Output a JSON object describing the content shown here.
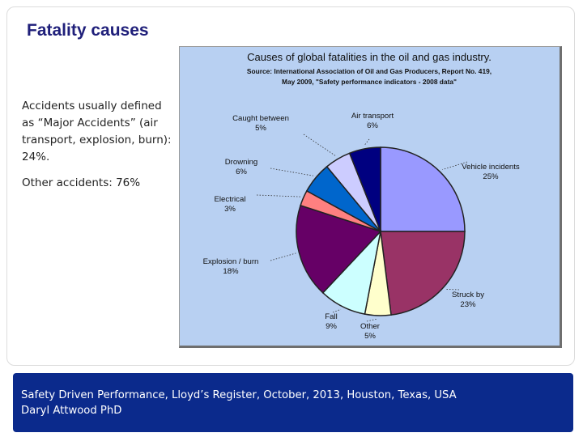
{
  "slide": {
    "title": "Fatality causes",
    "body": [
      "Accidents usually defined as “Major Accidents” (air transport, explosion, burn): 24%.",
      "Other accidents: 76%"
    ]
  },
  "footer": {
    "line1": "Safety Driven Performance, Lloyd’s Register, October, 2013, Houston, Texas, USA",
    "line2": "Daryl Attwood PhD"
  },
  "chart_data": {
    "type": "pie",
    "title": "Causes of global fatalities in the oil and gas industry.",
    "subtitle": [
      "Source: International Association of Oil and Gas Producers, Report No. 419,",
      "May 2009, \"Safety performance indicators - 2008 data\""
    ],
    "background": "#b8d0f2",
    "slices": [
      {
        "name": "Vehicle incidents",
        "value": 25,
        "label": "25%",
        "color": "#9999ff"
      },
      {
        "name": "Struck by",
        "value": 23,
        "label": "23%",
        "color": "#993366"
      },
      {
        "name": "Other",
        "value": 5,
        "label": "5%",
        "color": "#ffffcc"
      },
      {
        "name": "Fall",
        "value": 9,
        "label": "9%",
        "color": "#ccffff"
      },
      {
        "name": "Explosion / burn",
        "value": 18,
        "label": "18%",
        "color": "#660066"
      },
      {
        "name": "Electrical",
        "value": 3,
        "label": "3%",
        "color": "#ff8080"
      },
      {
        "name": "Drowning",
        "value": 6,
        "label": "6%",
        "color": "#0066cc"
      },
      {
        "name": "Caught between",
        "value": 5,
        "label": "5%",
        "color": "#ccccff"
      },
      {
        "name": "Air transport",
        "value": 6,
        "label": "6%",
        "color": "#000080"
      }
    ]
  }
}
